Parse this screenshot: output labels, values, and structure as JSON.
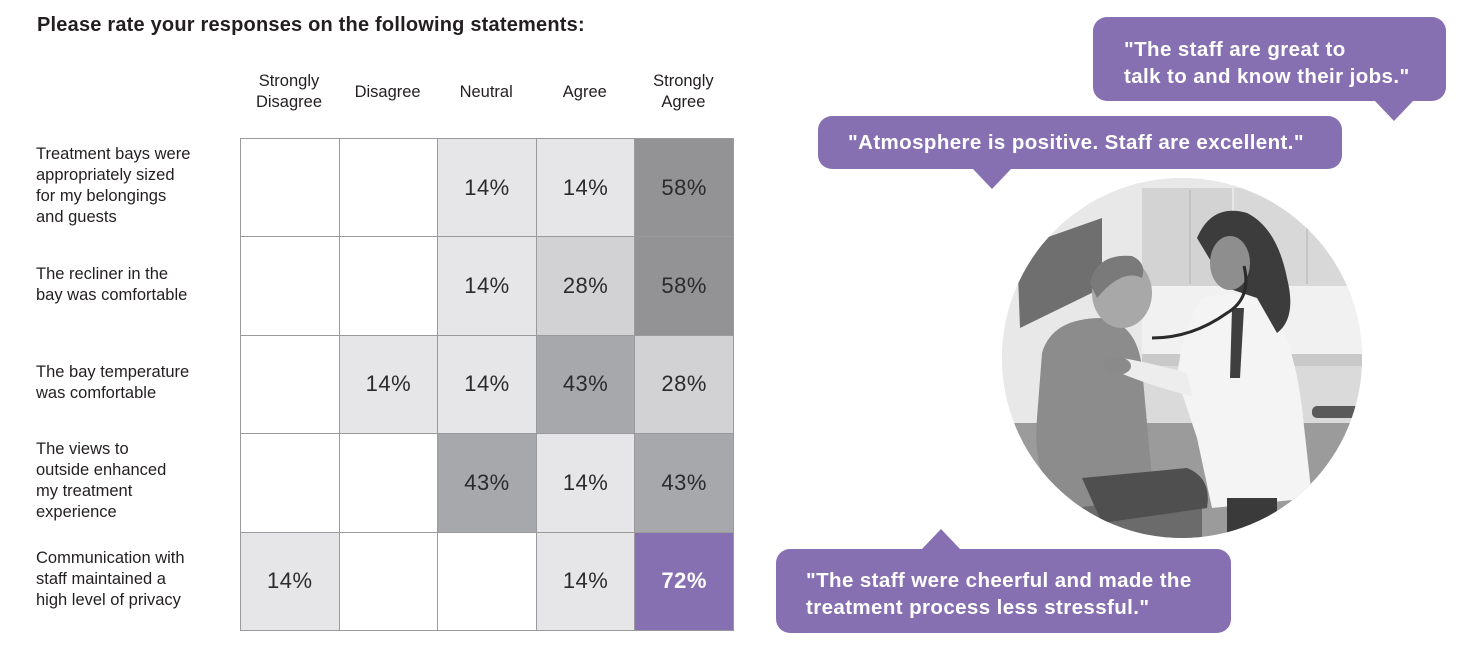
{
  "title": "Please rate your responses on the following statements:",
  "columns": [
    {
      "line1": "Strongly",
      "line2": "Disagree"
    },
    {
      "line1": "Disagree",
      "line2": ""
    },
    {
      "line1": "Neutral",
      "line2": ""
    },
    {
      "line1": "Agree",
      "line2": ""
    },
    {
      "line1": "Strongly",
      "line2": "Agree"
    }
  ],
  "rows": [
    {
      "label": [
        "Treatment bays were",
        "appropriately sized",
        "for my belongings",
        "and guests"
      ]
    },
    {
      "label": [
        "The recliner in the",
        "bay was comfortable"
      ]
    },
    {
      "label": [
        "The bay temperature",
        "was comfortable"
      ]
    },
    {
      "label": [
        "The views to",
        "outside enhanced",
        "my treatment",
        "experience"
      ]
    },
    {
      "label": [
        "Communication with",
        "staff maintained a",
        "high level of privacy"
      ]
    }
  ],
  "colors": {
    "accent": "#8770b1",
    "level_14": "#e6e6e8",
    "level_28": "#d2d2d4",
    "level_43": "#a7a8ab",
    "level_58": "#939396",
    "empty": "#ffffff"
  },
  "quotes": [
    {
      "lines": [
        "\"The staff are great to",
        "talk to and know their jobs.\""
      ]
    },
    {
      "lines": [
        "\"Atmosphere is positive.  Staff are excellent.\""
      ]
    },
    {
      "lines": [
        "\"The staff were cheerful and made the",
        "treatment process less stressful.\""
      ]
    }
  ],
  "photo": {
    "alt": "Doctor with stethoscope examining a seated older male patient"
  },
  "chart_data": {
    "type": "heatmap",
    "title": "Please rate your responses on the following statements:",
    "x": [
      "Strongly Disagree",
      "Disagree",
      "Neutral",
      "Agree",
      "Strongly Agree"
    ],
    "y": [
      "Treatment bays were appropriately sized for my belongings and guests",
      "The recliner in the bay was comfortable",
      "The bay temperature was comfortable",
      "The views to outside enhanced my treatment experience",
      "Communication with staff maintained a high level of privacy"
    ],
    "values": [
      [
        null,
        null,
        14,
        14,
        58
      ],
      [
        null,
        null,
        14,
        28,
        58
      ],
      [
        null,
        14,
        14,
        43,
        28
      ],
      [
        null,
        null,
        43,
        14,
        43
      ],
      [
        14,
        null,
        null,
        14,
        72
      ]
    ],
    "unit": "%",
    "highlight": {
      "row": 4,
      "col": 4,
      "color": "#8770b1"
    },
    "xlabel": "",
    "ylabel": "",
    "grid": true,
    "legend": "none"
  }
}
